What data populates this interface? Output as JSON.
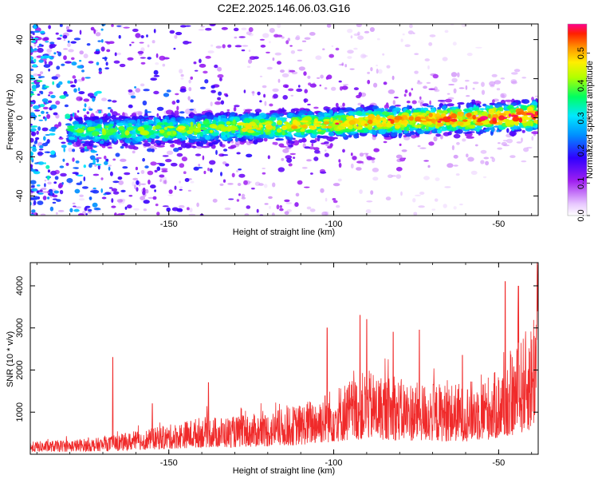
{
  "chart_data": [
    {
      "type": "heatmap",
      "title": "C2E2.2025.146.06.03.G16",
      "xlabel": "Height of straight line (km)",
      "ylabel": "Frequency (Hz)",
      "xlim": [
        -192,
        -38
      ],
      "ylim": [
        -50,
        48
      ],
      "xticks": [
        -150,
        -100,
        -50
      ],
      "yticks": [
        -40,
        -20,
        0,
        20,
        40
      ],
      "colorbar": {
        "label": "Normalized spectral amplitude",
        "range": [
          0.0,
          0.59
        ],
        "ticks": [
          0.0,
          0.1,
          0.2,
          0.3,
          0.4,
          0.5
        ]
      },
      "ridge": {
        "x": [
          -190,
          -170,
          -150,
          -130,
          -110,
          -90,
          -70,
          -50,
          -40
        ],
        "y": [
          -6,
          -7,
          -6,
          -5,
          -4,
          -2,
          -1,
          0,
          1
        ],
        "peak_amplitude": 0.59
      },
      "grid": false
    },
    {
      "type": "line",
      "xlabel": "Height of straight line (km)",
      "ylabel": "SNR (10 * v/v)",
      "xlim": [
        -192,
        -38
      ],
      "ylim": [
        0,
        4550
      ],
      "xticks": [
        -150,
        -100,
        -50
      ],
      "yticks": [
        1000,
        2000,
        3000,
        4000
      ],
      "color": "#f02a2a",
      "envelope": {
        "x": [
          -192,
          -180,
          -170,
          -160,
          -150,
          -140,
          -130,
          -120,
          -110,
          -100,
          -90,
          -80,
          -70,
          -60,
          -50,
          -45,
          -40,
          -38
        ],
        "y": [
          300,
          350,
          400,
          550,
          700,
          900,
          900,
          1000,
          1200,
          1600,
          2000,
          1800,
          1700,
          1700,
          2000,
          2500,
          3200,
          4500
        ]
      },
      "peaks": [
        {
          "x": -167,
          "y": 2300
        },
        {
          "x": -155,
          "y": 1200
        },
        {
          "x": -138,
          "y": 1700
        },
        {
          "x": -102,
          "y": 3000
        },
        {
          "x": -92,
          "y": 3300
        },
        {
          "x": -90,
          "y": 3200
        },
        {
          "x": -82,
          "y": 2900
        },
        {
          "x": -74,
          "y": 2950
        },
        {
          "x": -61,
          "y": 2350
        },
        {
          "x": -48,
          "y": 4100
        },
        {
          "x": -44,
          "y": 4000
        },
        {
          "x": -38,
          "y": 4500
        }
      ],
      "grid": false
    }
  ]
}
